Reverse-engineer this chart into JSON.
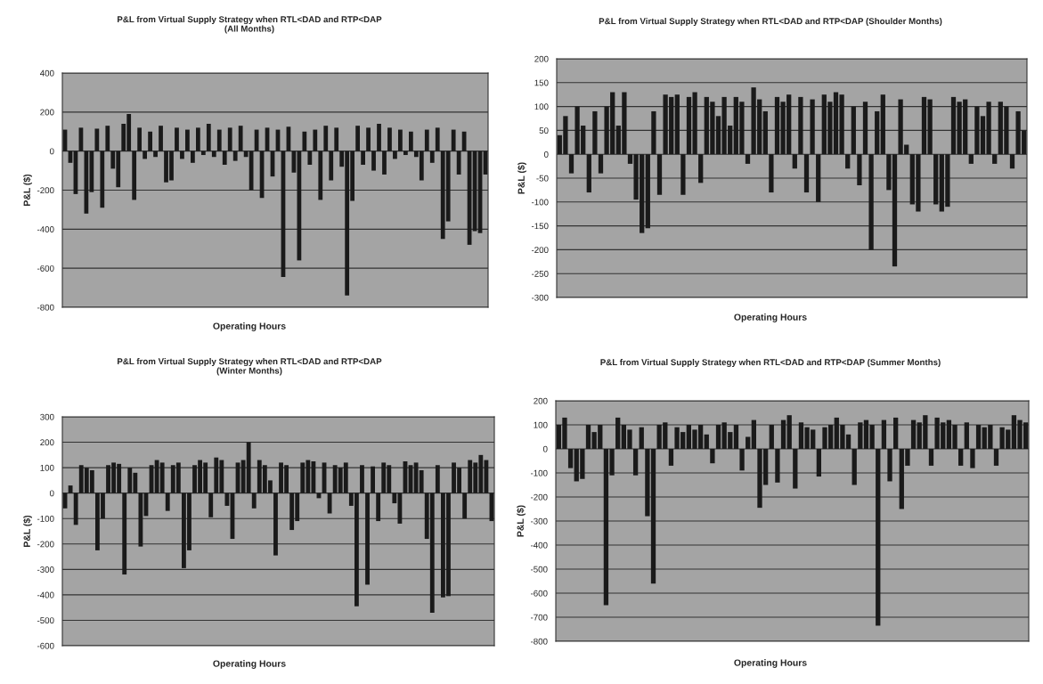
{
  "chart_data": [
    {
      "type": "bar",
      "title": "P&L from Virtual Supply Strategy when RTL<DAD and RTP<DAP\n(All Months)",
      "xlabel": "Operating Hours",
      "ylabel": "P&L ($)",
      "color": "#1a1a1a",
      "grid": "y",
      "ylim": [
        -800,
        400
      ],
      "yticks": [
        -800,
        -600,
        -400,
        -200,
        0,
        200,
        400
      ],
      "categories": [
        null,
        null,
        null,
        null,
        null,
        null,
        null,
        null,
        null,
        null,
        null,
        null,
        null,
        null,
        null,
        null,
        null,
        null,
        null,
        null,
        null,
        null,
        null,
        null,
        null,
        null,
        null,
        null,
        null,
        null,
        null,
        null,
        null,
        null,
        null,
        null,
        null,
        null,
        null,
        null,
        null,
        null,
        null,
        null,
        null,
        null,
        null,
        null,
        null,
        null,
        null,
        null,
        null,
        null,
        null,
        null,
        null,
        null,
        null,
        null,
        null,
        null,
        null,
        null,
        null,
        null,
        null,
        null,
        null,
        null,
        null,
        null,
        null,
        null,
        null,
        null,
        null,
        null,
        null,
        null
      ],
      "values": [
        110,
        -60,
        -220,
        120,
        -320,
        -210,
        115,
        -290,
        130,
        -90,
        -185,
        140,
        190,
        -250,
        120,
        -40,
        100,
        -30,
        130,
        -160,
        -150,
        120,
        -40,
        110,
        -60,
        120,
        -20,
        140,
        -30,
        110,
        -70,
        120,
        -50,
        130,
        -30,
        -200,
        110,
        -240,
        120,
        -130,
        110,
        -645,
        125,
        -110,
        -560,
        100,
        -70,
        110,
        -250,
        130,
        -150,
        120,
        -80,
        -740,
        -255,
        130,
        -70,
        120,
        -100,
        140,
        -120,
        120,
        -40,
        110,
        -20,
        100,
        -30,
        -150,
        110,
        -60,
        120,
        -450,
        -360,
        110,
        -120,
        100,
        -480,
        -410,
        -420,
        -120
      ]
    },
    {
      "type": "bar",
      "title": "P&L from Virtual Supply Strategy when RTL<DAD and RTP<DAP (Shoulder Months)",
      "xlabel": "Operating Hours",
      "ylabel": "P&L ($)",
      "color": "#1a1a1a",
      "grid": "y",
      "ylim": [
        -300,
        200
      ],
      "yticks": [
        -300,
        -250,
        -200,
        -150,
        -100,
        -50,
        0,
        50,
        100,
        150,
        200
      ],
      "categories": [
        null,
        null,
        null,
        null,
        null,
        null,
        null,
        null,
        null,
        null,
        null,
        null,
        null,
        null,
        null,
        null,
        null,
        null,
        null,
        null,
        null,
        null,
        null,
        null,
        null,
        null,
        null,
        null,
        null,
        null,
        null,
        null,
        null,
        null,
        null,
        null,
        null,
        null,
        null,
        null,
        null,
        null,
        null,
        null,
        null,
        null,
        null,
        null,
        null,
        null,
        null,
        null,
        null,
        null,
        null,
        null,
        null,
        null,
        null,
        null,
        null,
        null,
        null,
        null,
        null,
        null,
        null,
        null,
        null,
        null,
        null,
        null,
        null,
        null,
        null,
        null,
        null,
        null,
        null,
        null
      ],
      "values": [
        40,
        80,
        -40,
        100,
        60,
        -80,
        90,
        -40,
        100,
        130,
        60,
        130,
        -20,
        -95,
        -165,
        -155,
        90,
        -85,
        125,
        120,
        125,
        -85,
        120,
        130,
        -60,
        120,
        110,
        80,
        120,
        60,
        120,
        110,
        -20,
        140,
        115,
        90,
        -80,
        120,
        110,
        125,
        -30,
        120,
        -80,
        115,
        -100,
        125,
        110,
        130,
        125,
        -30,
        100,
        -65,
        110,
        -200,
        90,
        125,
        -75,
        -235,
        115,
        20,
        -105,
        -120,
        120,
        115,
        -105,
        -120,
        -110,
        120,
        110,
        115,
        -20,
        100,
        80,
        110,
        -20,
        110,
        100,
        -30,
        90,
        50
      ]
    },
    {
      "type": "bar",
      "title": "P&L from Virtual Supply Strategy when RTL<DAD and RTP<DAP\n(Winter Months)",
      "xlabel": "Operating Hours",
      "ylabel": "P&L ($)",
      "color": "#1a1a1a",
      "grid": "y",
      "ylim": [
        -600,
        300
      ],
      "yticks": [
        -600,
        -500,
        -400,
        -300,
        -200,
        -100,
        0,
        100,
        200,
        300
      ],
      "categories": [
        null,
        null,
        null,
        null,
        null,
        null,
        null,
        null,
        null,
        null,
        null,
        null,
        null,
        null,
        null,
        null,
        null,
        null,
        null,
        null,
        null,
        null,
        null,
        null,
        null,
        null,
        null,
        null,
        null,
        null,
        null,
        null,
        null,
        null,
        null,
        null,
        null,
        null,
        null,
        null,
        null,
        null,
        null,
        null,
        null,
        null,
        null,
        null,
        null,
        null,
        null,
        null,
        null,
        null,
        null,
        null,
        null,
        null,
        null,
        null,
        null,
        null,
        null,
        null,
        null,
        null,
        null,
        null,
        null,
        null,
        null,
        null,
        null,
        null,
        null,
        null,
        null,
        null,
        null,
        null
      ],
      "values": [
        -60,
        30,
        -125,
        110,
        100,
        90,
        -225,
        -100,
        110,
        120,
        115,
        -320,
        100,
        80,
        -210,
        -90,
        110,
        130,
        120,
        -70,
        110,
        120,
        -295,
        -225,
        110,
        130,
        120,
        -95,
        140,
        130,
        -50,
        -180,
        120,
        130,
        200,
        -60,
        130,
        110,
        50,
        -245,
        120,
        110,
        -145,
        -110,
        120,
        130,
        125,
        -20,
        120,
        -80,
        110,
        100,
        120,
        -50,
        -445,
        110,
        -360,
        105,
        -110,
        120,
        110,
        -40,
        -120,
        125,
        110,
        120,
        90,
        -180,
        -470,
        110,
        -410,
        -405,
        120,
        100,
        -100,
        130,
        120,
        150,
        130,
        -110
      ]
    },
    {
      "type": "bar",
      "title": "P&L from Virtual Supply Strategy when RTL<DAD and RTP<DAP (Summer Months)",
      "xlabel": "Operating Hours",
      "ylabel": "P&L ($)",
      "color": "#1a1a1a",
      "grid": "y",
      "ylim": [
        -800,
        200
      ],
      "yticks": [
        -800,
        -700,
        -600,
        -500,
        -400,
        -300,
        -200,
        -100,
        0,
        100,
        200
      ],
      "categories": [
        null,
        null,
        null,
        null,
        null,
        null,
        null,
        null,
        null,
        null,
        null,
        null,
        null,
        null,
        null,
        null,
        null,
        null,
        null,
        null,
        null,
        null,
        null,
        null,
        null,
        null,
        null,
        null,
        null,
        null,
        null,
        null,
        null,
        null,
        null,
        null,
        null,
        null,
        null,
        null,
        null,
        null,
        null,
        null,
        null,
        null,
        null,
        null,
        null,
        null,
        null,
        null,
        null,
        null,
        null,
        null,
        null,
        null,
        null,
        null,
        null,
        null,
        null,
        null,
        null,
        null,
        null,
        null,
        null,
        null,
        null,
        null,
        null,
        null,
        null,
        null,
        null,
        null,
        null,
        null
      ],
      "values": [
        100,
        130,
        -80,
        -135,
        -125,
        100,
        70,
        100,
        -650,
        -110,
        130,
        100,
        80,
        -110,
        90,
        -280,
        -560,
        100,
        110,
        -70,
        90,
        70,
        100,
        80,
        100,
        60,
        -60,
        100,
        110,
        70,
        100,
        -90,
        50,
        120,
        -245,
        -150,
        100,
        -140,
        120,
        140,
        -165,
        110,
        90,
        80,
        -115,
        90,
        100,
        130,
        100,
        60,
        -150,
        110,
        120,
        100,
        -735,
        120,
        -135,
        130,
        -250,
        -70,
        120,
        110,
        140,
        -70,
        130,
        110,
        120,
        100,
        -70,
        110,
        -80,
        100,
        90,
        100,
        -70,
        90,
        80,
        140,
        120,
        110
      ]
    }
  ]
}
